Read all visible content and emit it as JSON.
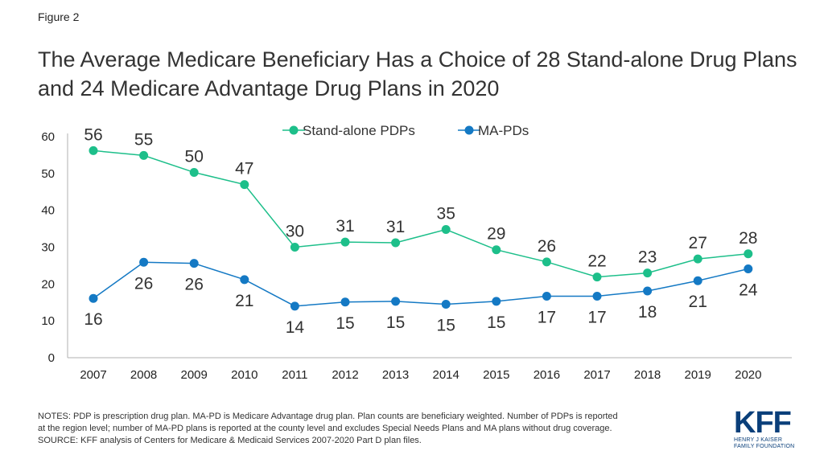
{
  "figure_label": "Figure 2",
  "title": "The Average Medicare Beneficiary Has a Choice of 28 Stand-alone Drug Plans and 24 Medicare Advantage Drug Plans in 2020",
  "notes": [
    "NOTES: PDP is prescription drug plan. MA-PD is Medicare Advantage drug plan. Plan counts are beneficiary weighted. Number of PDPs is reported",
    "at the region level; number of MA-PD plans is reported at the county level and excludes Special Needs Plans and MA plans without drug coverage.",
    "SOURCE: KFF analysis of Centers for Medicare & Medicaid Services 2007-2020 Part D plan files."
  ],
  "logo": {
    "text": "KFF",
    "subtitle_line1": "HENRY J KAISER",
    "subtitle_line2": "FAMILY FOUNDATION"
  },
  "colors": {
    "stand_alone": "#1dbf8a",
    "ma_pd": "#1479c4",
    "axis": "#b0b0b0"
  },
  "chart_data": {
    "type": "line",
    "x": [
      "2007",
      "2008",
      "2009",
      "2010",
      "2011",
      "2012",
      "2013",
      "2014",
      "2015",
      "2016",
      "2017",
      "2018",
      "2019",
      "2020"
    ],
    "series": [
      {
        "name": "Stand-alone PDPs",
        "values": [
          56,
          55,
          50,
          47,
          30,
          31,
          31,
          35,
          29,
          26,
          22,
          23,
          27,
          28
        ],
        "plot_values": [
          56.2,
          54.9,
          50.3,
          47.0,
          30.0,
          31.4,
          31.2,
          34.8,
          29.3,
          26.0,
          21.9,
          23.0,
          26.8,
          28.2
        ],
        "color": "#1dbf8a",
        "label_position": "above"
      },
      {
        "name": "MA-PDs",
        "values": [
          16,
          26,
          26,
          21,
          14,
          15,
          15,
          15,
          15,
          17,
          17,
          18,
          21,
          24
        ],
        "plot_values": [
          16.1,
          25.9,
          25.6,
          21.2,
          14.0,
          15.1,
          15.3,
          14.5,
          15.3,
          16.7,
          16.7,
          18.1,
          20.9,
          24.1
        ],
        "color": "#1479c4",
        "label_position": "below"
      }
    ],
    "ylim": [
      0,
      60
    ],
    "yticks": [
      0,
      10,
      20,
      30,
      40,
      50,
      60
    ],
    "xlabel": "",
    "ylabel": "",
    "grid": false,
    "legend_placement": "top-center"
  }
}
